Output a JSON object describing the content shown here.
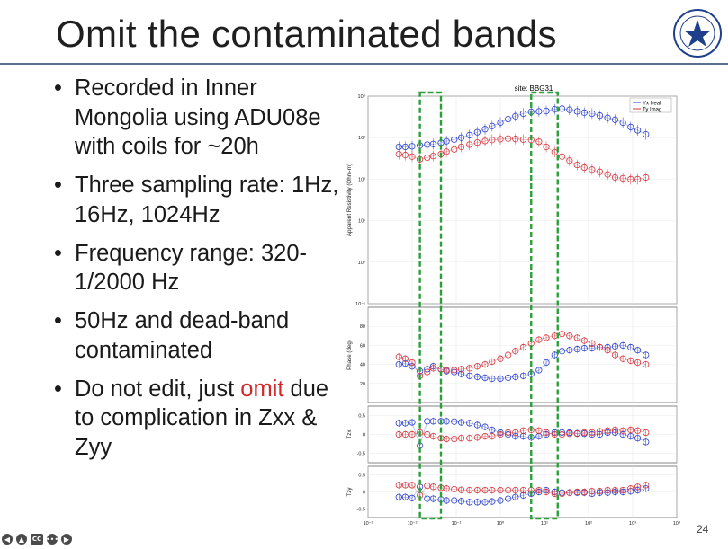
{
  "slide": {
    "title": "Omit the contaminated bands",
    "page_number": "24",
    "bullets": [
      {
        "text": "Recorded in Inner Mongolia using ADU08e with coils for ~20h"
      },
      {
        "text": "Three sampling rate: 1Hz, 16Hz, 1024Hz"
      },
      {
        "text": "Frequency range: 320-1/2000 Hz"
      },
      {
        "text": "50Hz and dead-band contaminated"
      },
      {
        "text_before": "Do not edit, just ",
        "highlight": "omit",
        "text_after": " due to complication in Zxx & Zyy",
        "highlight_color": "#d22a2a"
      }
    ],
    "controls": [
      "back-icon",
      "pointer-icon",
      "CC",
      "more-icon",
      "forward-icon"
    ]
  },
  "figure": {
    "title": "site: BBG31",
    "legend": [
      "Yx Ireal",
      "Ty Imag"
    ],
    "panels": [
      {
        "ylabel": "Apparent Resistivity (Ohm-m)",
        "yticks": [
          "10⁴",
          "10³",
          "10²",
          "10¹",
          "10⁰",
          "10⁻¹"
        ]
      },
      {
        "ylabel": "Phase (deg)",
        "yticks": [
          "80",
          "60",
          "40",
          "20"
        ]
      },
      {
        "ylabel": "Tzx",
        "yticks": [
          "0.5",
          "0",
          "-0.5"
        ]
      },
      {
        "ylabel": "Tzy",
        "yticks": [
          "0.5",
          "0",
          "-0.5"
        ]
      }
    ],
    "xticks": [
      "10⁻³",
      "10⁻²",
      "10⁻¹",
      "10⁰",
      "10¹",
      "10²",
      "10³",
      "10⁴"
    ],
    "colors": {
      "blue": "#2a3fd0",
      "red": "#d8343c",
      "magenta": "#c040d0",
      "cyan": "#20c8e0",
      "green_box": "#2e9e3c",
      "yellow": "#e0e040"
    },
    "chart_data": [
      {
        "type": "scatter",
        "panel": "apparent_resistivity",
        "log_x": true,
        "log_y": true,
        "xlim": [
          0.001,
          10000
        ],
        "ylim": [
          0.1,
          10000
        ],
        "series": [
          {
            "name": "Yx Ireal",
            "color": "#2a3fd0",
            "x": [
              0.005,
              0.007,
              0.01,
              0.015,
              0.022,
              0.03,
              0.045,
              0.06,
              0.09,
              0.13,
              0.2,
              0.3,
              0.45,
              0.65,
              1,
              1.5,
              2.2,
              3.3,
              5,
              7.5,
              11,
              17,
              25,
              37,
              55,
              80,
              120,
              180,
              270,
              400,
              600,
              900,
              1300,
              2000
            ],
            "y": [
              600,
              600,
              620,
              650,
              680,
              700,
              750,
              820,
              900,
              1000,
              1150,
              1350,
              1600,
              1900,
              2300,
              2800,
              3300,
              3800,
              4200,
              4300,
              4400,
              4800,
              5000,
              4700,
              4300,
              4000,
              3800,
              3400,
              3000,
              2700,
              2300,
              1800,
              1500,
              1200
            ]
          },
          {
            "name": "Ty Imag",
            "color": "#d8343c",
            "x": [
              0.005,
              0.007,
              0.01,
              0.015,
              0.022,
              0.03,
              0.045,
              0.06,
              0.09,
              0.13,
              0.2,
              0.3,
              0.45,
              0.65,
              1,
              1.5,
              2.2,
              3.3,
              5,
              7.5,
              11,
              17,
              25,
              37,
              55,
              80,
              120,
              180,
              270,
              400,
              600,
              900,
              1300,
              2000
            ],
            "y": [
              400,
              380,
              350,
              300,
              330,
              360,
              400,
              460,
              520,
              600,
              680,
              760,
              830,
              880,
              920,
              950,
              930,
              900,
              880,
              800,
              600,
              450,
              350,
              280,
              220,
              190,
              170,
              150,
              130,
              110,
              105,
              100,
              100,
              110
            ]
          }
        ]
      },
      {
        "type": "scatter",
        "panel": "phase",
        "log_x": true,
        "xlim": [
          0.001,
          10000
        ],
        "ylim": [
          0,
          100
        ],
        "series": [
          {
            "name": "Yx Ireal",
            "color": "#2a3fd0",
            "x": [
              0.005,
              0.007,
              0.01,
              0.015,
              0.022,
              0.03,
              0.045,
              0.06,
              0.09,
              0.13,
              0.2,
              0.3,
              0.45,
              0.65,
              1,
              1.5,
              2.2,
              3.3,
              5,
              7.5,
              11,
              17,
              25,
              37,
              55,
              80,
              120,
              180,
              270,
              400,
              600,
              900,
              1300,
              2000
            ],
            "y": [
              40,
              41,
              38,
              33,
              35,
              38,
              35,
              33,
              32,
              30,
              28,
              27,
              26,
              25,
              25,
              26,
              27,
              28,
              30,
              34,
              42,
              50,
              54,
              55,
              56,
              57,
              57,
              58,
              58,
              59,
              60,
              58,
              55,
              50
            ]
          },
          {
            "name": "Ty Imag",
            "color": "#d8343c",
            "x": [
              0.005,
              0.007,
              0.01,
              0.015,
              0.022,
              0.03,
              0.045,
              0.06,
              0.09,
              0.13,
              0.2,
              0.3,
              0.45,
              0.65,
              1,
              1.5,
              2.2,
              3.3,
              5,
              7.5,
              11,
              17,
              25,
              37,
              55,
              80,
              120,
              180,
              270,
              400,
              600,
              900,
              1300,
              2000
            ],
            "y": [
              48,
              46,
              42,
              28,
              32,
              36,
              35,
              34,
              34,
              35,
              36,
              38,
              40,
              43,
              46,
              50,
              54,
              58,
              62,
              66,
              68,
              70,
              72,
              70,
              68,
              65,
              62,
              58,
              55,
              50,
              46,
              44,
              42,
              40
            ]
          }
        ]
      },
      {
        "type": "scatter",
        "panel": "tzx",
        "log_x": true,
        "xlim": [
          0.001,
          10000
        ],
        "ylim": [
          -0.75,
          0.75
        ],
        "series": [
          {
            "name": "Yx Ireal",
            "color": "#2a3fd0",
            "x": [
              0.005,
              0.007,
              0.01,
              0.015,
              0.022,
              0.03,
              0.045,
              0.06,
              0.09,
              0.13,
              0.2,
              0.3,
              0.45,
              0.65,
              1,
              1.5,
              2.2,
              3.3,
              5,
              7.5,
              11,
              17,
              25,
              37,
              55,
              80,
              120,
              180,
              270,
              400,
              600,
              900,
              1300,
              2000
            ],
            "y": [
              0.3,
              0.3,
              0.32,
              -0.3,
              0.35,
              0.35,
              0.35,
              0.35,
              0.34,
              0.32,
              0.3,
              0.25,
              0.2,
              0.12,
              0.05,
              0,
              -0.05,
              -0.05,
              -0.08,
              -0.05,
              0,
              0.05,
              0.05,
              0.05,
              0.03,
              0.02,
              0,
              0,
              0.05,
              0.05,
              0.0,
              -0.05,
              -0.1,
              -0.2
            ]
          },
          {
            "name": "Ty Imag",
            "color": "#d8343c",
            "x": [
              0.005,
              0.007,
              0.01,
              0.015,
              0.022,
              0.03,
              0.045,
              0.06,
              0.09,
              0.13,
              0.2,
              0.3,
              0.45,
              0.65,
              1,
              1.5,
              2.2,
              3.3,
              5,
              7.5,
              11,
              17,
              25,
              37,
              55,
              80,
              120,
              180,
              270,
              400,
              600,
              900,
              1300,
              2000
            ],
            "y": [
              0.0,
              0.0,
              0.0,
              0.05,
              0.0,
              -0.05,
              -0.1,
              -0.12,
              -0.12,
              -0.1,
              -0.1,
              -0.08,
              -0.05,
              -0.05,
              0,
              0.05,
              0.05,
              0.1,
              0.12,
              0.1,
              0.05,
              0,
              0,
              0.02,
              0.02,
              0.05,
              0.05,
              0.08,
              0.1,
              0.12,
              0.1,
              0.12,
              0.1,
              0.05
            ]
          }
        ]
      },
      {
        "type": "scatter",
        "panel": "tzy",
        "log_x": true,
        "xlim": [
          0.001,
          10000
        ],
        "ylim": [
          -0.75,
          0.75
        ],
        "series": [
          {
            "name": "Yx Ireal",
            "color": "#2a3fd0",
            "x": [
              0.005,
              0.007,
              0.01,
              0.015,
              0.022,
              0.03,
              0.045,
              0.06,
              0.09,
              0.13,
              0.2,
              0.3,
              0.45,
              0.65,
              1,
              1.5,
              2.2,
              3.3,
              5,
              7.5,
              11,
              17,
              25,
              37,
              55,
              80,
              120,
              180,
              270,
              400,
              600,
              900,
              1300,
              2000
            ],
            "y": [
              -0.15,
              -0.15,
              -0.18,
              0.15,
              -0.2,
              -0.2,
              -0.22,
              -0.25,
              -0.25,
              -0.27,
              -0.3,
              -0.3,
              -0.3,
              -0.28,
              -0.25,
              -0.2,
              -0.15,
              -0.1,
              -0.05,
              0,
              0.05,
              0.0,
              -0.02,
              -0.02,
              -0.02,
              -0.02,
              -0.05,
              -0.02,
              -0.02,
              0,
              0,
              0.02,
              0.05,
              0.1
            ]
          },
          {
            "name": "Ty Imag",
            "color": "#d8343c",
            "x": [
              0.005,
              0.007,
              0.01,
              0.015,
              0.022,
              0.03,
              0.045,
              0.06,
              0.09,
              0.13,
              0.2,
              0.3,
              0.45,
              0.65,
              1,
              1.5,
              2.2,
              3.3,
              5,
              7.5,
              11,
              17,
              25,
              37,
              55,
              80,
              120,
              180,
              270,
              400,
              600,
              900,
              1300,
              2000
            ],
            "y": [
              0.2,
              0.2,
              0.2,
              -0.1,
              0.18,
              0.15,
              0.12,
              0.1,
              0.08,
              0.06,
              0.05,
              0.05,
              0.05,
              0.05,
              0.05,
              0.05,
              0.05,
              0.05,
              0.05,
              0.05,
              0.0,
              -0.05,
              -0.05,
              -0.02,
              0,
              0,
              0.02,
              0.02,
              0.05,
              0.05,
              0.05,
              0.1,
              0.15,
              0.2
            ]
          }
        ]
      }
    ],
    "omitted_bands": [
      [
        0.015,
        0.045
      ],
      [
        5,
        20
      ]
    ]
  }
}
